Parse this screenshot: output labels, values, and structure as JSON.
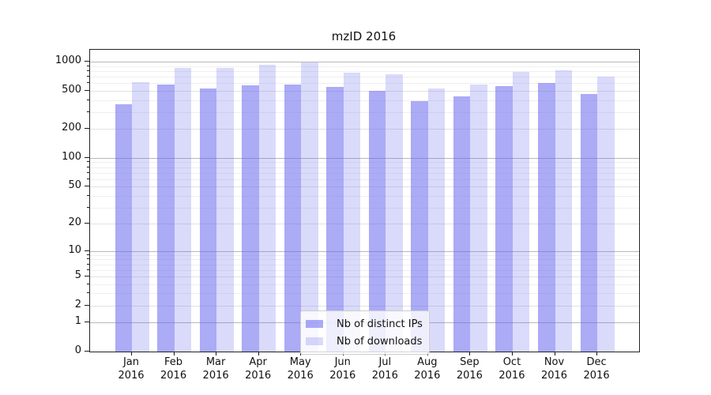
{
  "chart_data": {
    "type": "bar",
    "title": "mzID 2016",
    "categories": [
      "Jan 2016",
      "Feb 2016",
      "Mar 2016",
      "Apr 2016",
      "May 2016",
      "Jun 2016",
      "Jul 2016",
      "Aug 2016",
      "Sep 2016",
      "Oct 2016",
      "Nov 2016",
      "Dec 2016"
    ],
    "series": [
      {
        "name": "Nb of distinct IPs",
        "color": "rgba(102,102,238,0.55)",
        "values": [
          365,
          580,
          530,
          565,
          575,
          550,
          495,
          390,
          440,
          555,
          600,
          460
        ]
      },
      {
        "name": "Nb of downloads",
        "color": "rgba(102,102,238,0.24)",
        "values": [
          610,
          870,
          870,
          930,
          980,
          770,
          745,
          525,
          580,
          780,
          810,
          705
        ]
      }
    ],
    "xlabel": "",
    "ylabel": "",
    "yscale": "log1p",
    "ylim": [
      0,
      1330
    ],
    "yticks": [
      0,
      1,
      2,
      5,
      10,
      20,
      50,
      100,
      200,
      500,
      1000
    ],
    "yticks_minor": [
      3,
      4,
      6,
      7,
      8,
      9,
      30,
      40,
      60,
      70,
      80,
      90,
      300,
      400,
      600,
      700,
      800,
      900
    ],
    "grid": "on",
    "legend_position": "inside-bottom-center"
  },
  "colors": {
    "bar_base": "#6666ee",
    "grid_major": "#b8b8b8",
    "grid_sub": "#e2e2e2",
    "grid_minor": "#efefef",
    "axis": "#1a1a1a",
    "text": "#111111",
    "legend_border": "#cccccc",
    "legend_bg": "rgba(255,255,255,0.8)"
  }
}
